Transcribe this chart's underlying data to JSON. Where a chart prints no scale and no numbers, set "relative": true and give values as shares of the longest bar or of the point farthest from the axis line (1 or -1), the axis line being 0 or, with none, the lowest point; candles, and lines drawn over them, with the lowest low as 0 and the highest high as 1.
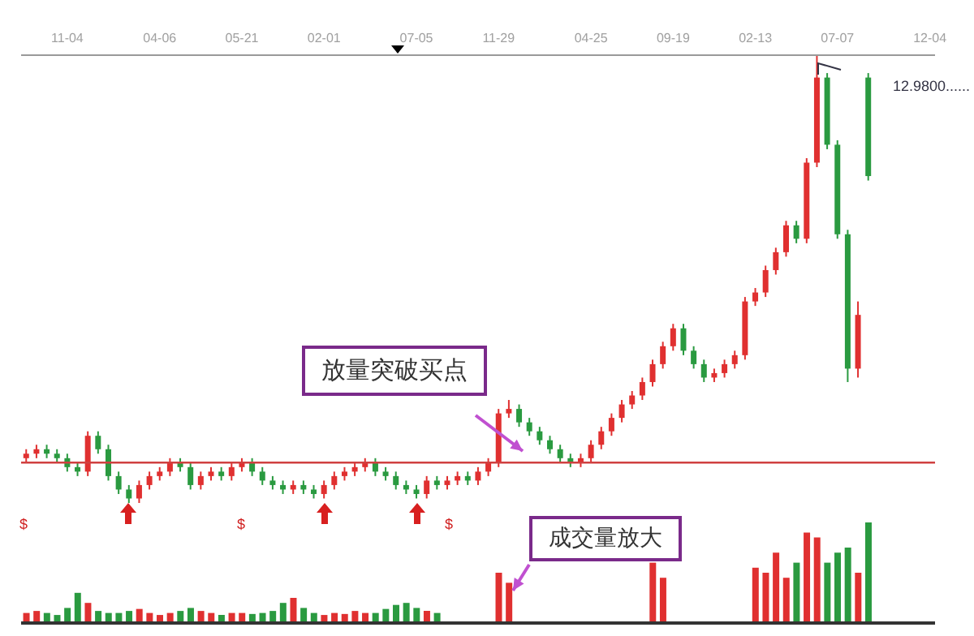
{
  "chart_data": [
    {
      "type": "candlestick",
      "relative": true,
      "categories": [
        null,
        null,
        null,
        null,
        "11-04",
        null,
        null,
        null,
        null,
        null,
        null,
        null,
        null,
        "04-06",
        null,
        null,
        null,
        null,
        null,
        null,
        null,
        "05-21",
        null,
        null,
        null,
        null,
        null,
        null,
        null,
        "02-01",
        null,
        null,
        null,
        null,
        null,
        null,
        null,
        null,
        "07-05",
        null,
        null,
        null,
        null,
        null,
        null,
        null,
        "11-29",
        null,
        null,
        null,
        null,
        null,
        null,
        null,
        null,
        "04-25",
        null,
        null,
        null,
        null,
        null,
        null,
        null,
        "09-19",
        null,
        null,
        null,
        null,
        null,
        null,
        null,
        "02-13",
        null,
        null,
        null,
        null,
        null,
        null,
        null,
        "07-07",
        null,
        null,
        null,
        null,
        null,
        null,
        null,
        null,
        "12-04"
      ],
      "ohlc": [
        [
          0.1,
          0.12,
          0.09,
          0.11
        ],
        [
          0.11,
          0.13,
          0.1,
          0.12
        ],
        [
          0.12,
          0.13,
          0.1,
          0.11
        ],
        [
          0.11,
          0.12,
          0.09,
          0.1
        ],
        [
          0.1,
          0.11,
          0.07,
          0.08
        ],
        [
          0.08,
          0.09,
          0.06,
          0.07
        ],
        [
          0.07,
          0.16,
          0.06,
          0.15
        ],
        [
          0.15,
          0.16,
          0.11,
          0.12
        ],
        [
          0.12,
          0.13,
          0.05,
          0.06
        ],
        [
          0.06,
          0.07,
          0.02,
          0.03
        ],
        [
          0.03,
          0.04,
          0.0,
          0.01
        ],
        [
          0.01,
          0.05,
          0.0,
          0.04
        ],
        [
          0.04,
          0.07,
          0.03,
          0.06
        ],
        [
          0.06,
          0.08,
          0.05,
          0.07
        ],
        [
          0.07,
          0.1,
          0.06,
          0.09
        ],
        [
          0.09,
          0.1,
          0.07,
          0.08
        ],
        [
          0.08,
          0.09,
          0.03,
          0.04
        ],
        [
          0.04,
          0.07,
          0.03,
          0.06
        ],
        [
          0.06,
          0.08,
          0.05,
          0.07
        ],
        [
          0.07,
          0.08,
          0.05,
          0.06
        ],
        [
          0.06,
          0.09,
          0.05,
          0.08
        ],
        [
          0.08,
          0.1,
          0.07,
          0.09
        ],
        [
          0.09,
          0.1,
          0.06,
          0.07
        ],
        [
          0.07,
          0.08,
          0.04,
          0.05
        ],
        [
          0.05,
          0.06,
          0.03,
          0.04
        ],
        [
          0.04,
          0.05,
          0.02,
          0.03
        ],
        [
          0.03,
          0.05,
          0.02,
          0.04
        ],
        [
          0.04,
          0.05,
          0.02,
          0.03
        ],
        [
          0.03,
          0.04,
          0.01,
          0.02
        ],
        [
          0.02,
          0.05,
          0.01,
          0.04
        ],
        [
          0.04,
          0.07,
          0.03,
          0.06
        ],
        [
          0.06,
          0.08,
          0.05,
          0.07
        ],
        [
          0.07,
          0.09,
          0.06,
          0.08
        ],
        [
          0.08,
          0.1,
          0.07,
          0.09
        ],
        [
          0.09,
          0.1,
          0.06,
          0.07
        ],
        [
          0.07,
          0.08,
          0.05,
          0.06
        ],
        [
          0.06,
          0.07,
          0.03,
          0.04
        ],
        [
          0.04,
          0.05,
          0.02,
          0.03
        ],
        [
          0.03,
          0.04,
          0.01,
          0.02
        ],
        [
          0.02,
          0.06,
          0.01,
          0.05
        ],
        [
          0.05,
          0.06,
          0.03,
          0.04
        ],
        [
          0.04,
          0.06,
          0.03,
          0.05
        ],
        [
          0.05,
          0.07,
          0.04,
          0.06
        ],
        [
          0.06,
          0.07,
          0.04,
          0.05
        ],
        [
          0.05,
          0.08,
          0.04,
          0.07
        ],
        [
          0.07,
          0.1,
          0.06,
          0.09
        ],
        [
          0.09,
          0.21,
          0.08,
          0.2
        ],
        [
          0.2,
          0.23,
          0.19,
          0.21
        ],
        [
          0.21,
          0.22,
          0.17,
          0.18
        ],
        [
          0.18,
          0.19,
          0.15,
          0.16
        ],
        [
          0.16,
          0.17,
          0.13,
          0.14
        ],
        [
          0.14,
          0.15,
          0.11,
          0.12
        ],
        [
          0.12,
          0.13,
          0.09,
          0.1
        ],
        [
          0.1,
          0.11,
          0.08,
          0.09
        ],
        [
          0.09,
          0.11,
          0.08,
          0.1
        ],
        [
          0.1,
          0.14,
          0.09,
          0.13
        ],
        [
          0.13,
          0.17,
          0.12,
          0.16
        ],
        [
          0.16,
          0.2,
          0.15,
          0.19
        ],
        [
          0.19,
          0.23,
          0.18,
          0.22
        ],
        [
          0.22,
          0.25,
          0.21,
          0.24
        ],
        [
          0.24,
          0.28,
          0.23,
          0.27
        ],
        [
          0.27,
          0.32,
          0.26,
          0.31
        ],
        [
          0.31,
          0.36,
          0.3,
          0.35
        ],
        [
          0.35,
          0.4,
          0.34,
          0.39
        ],
        [
          0.39,
          0.4,
          0.33,
          0.34
        ],
        [
          0.34,
          0.35,
          0.3,
          0.31
        ],
        [
          0.31,
          0.32,
          0.27,
          0.28
        ],
        [
          0.28,
          0.3,
          0.27,
          0.29
        ],
        [
          0.29,
          0.32,
          0.28,
          0.31
        ],
        [
          0.31,
          0.34,
          0.3,
          0.33
        ],
        [
          0.33,
          0.46,
          0.32,
          0.45
        ],
        [
          0.45,
          0.48,
          0.44,
          0.47
        ],
        [
          0.47,
          0.53,
          0.46,
          0.52
        ],
        [
          0.52,
          0.57,
          0.51,
          0.56
        ],
        [
          0.56,
          0.63,
          0.55,
          0.62
        ],
        [
          0.62,
          0.63,
          0.58,
          0.59
        ],
        [
          0.59,
          0.77,
          0.58,
          0.76
        ],
        [
          0.76,
          1.0,
          0.75,
          0.95
        ],
        [
          0.95,
          0.96,
          0.79,
          0.8
        ],
        [
          0.8,
          0.81,
          0.59,
          0.6
        ],
        [
          0.6,
          0.61,
          0.27,
          0.3
        ],
        [
          0.3,
          0.45,
          0.28,
          0.42
        ],
        [
          0.95,
          0.96,
          0.72,
          0.73
        ],
        null,
        null,
        null,
        null,
        null,
        null
      ],
      "colors": [
        "#e03030",
        "#e03030",
        "#2a9a40",
        "#2a9a40",
        "#2a9a40",
        "#2a9a40",
        "#e03030",
        "#2a9a40",
        "#2a9a40",
        "#2a9a40",
        "#2a9a40",
        "#e03030",
        "#e03030",
        "#e03030",
        "#e03030",
        "#2a9a40",
        "#2a9a40",
        "#e03030",
        "#e03030",
        "#2a9a40",
        "#e03030",
        "#e03030",
        "#2a9a40",
        "#2a9a40",
        "#2a9a40",
        "#2a9a40",
        "#e03030",
        "#2a9a40",
        "#2a9a40",
        "#e03030",
        "#e03030",
        "#e03030",
        "#e03030",
        "#e03030",
        "#2a9a40",
        "#2a9a40",
        "#2a9a40",
        "#2a9a40",
        "#2a9a40",
        "#e03030",
        "#2a9a40",
        "#e03030",
        "#e03030",
        "#2a9a40",
        "#e03030",
        "#e03030",
        "#e03030",
        "#e03030",
        "#2a9a40",
        "#2a9a40",
        "#2a9a40",
        "#2a9a40",
        "#2a9a40",
        "#2a9a40",
        "#e03030",
        "#e03030",
        "#e03030",
        "#e03030",
        "#e03030",
        "#e03030",
        "#e03030",
        "#e03030",
        "#e03030",
        "#e03030",
        "#2a9a40",
        "#2a9a40",
        "#2a9a40",
        "#e03030",
        "#e03030",
        "#e03030",
        "#e03030",
        "#e03030",
        "#e03030",
        "#e03030",
        "#e03030",
        "#2a9a40",
        "#e03030",
        "#e03030",
        "#2a9a40",
        "#2a9a40",
        "#2a9a40",
        "#e03030",
        "#2a9a40",
        "#e03030",
        "#e03030",
        "#e03030",
        "#e03030",
        "#e03030",
        "#e03030"
      ],
      "ref_lines": [
        {
          "axis": "y",
          "value": 0.09,
          "color": "#d04040"
        }
      ],
      "annotations": [
        "放量突破买点",
        "12.9800......",
        "$",
        "$",
        "$"
      ]
    },
    {
      "type": "bar",
      "relative": true,
      "categories": [
        null,
        null,
        null,
        null,
        null,
        null,
        null,
        null,
        null,
        null,
        null,
        null,
        null,
        null,
        null,
        null,
        null,
        null,
        null,
        null,
        null,
        null,
        null,
        null,
        null,
        null,
        null,
        null,
        null,
        null,
        null,
        null,
        null,
        null,
        null,
        null,
        null,
        null,
        null,
        null,
        null,
        null,
        null,
        null,
        null,
        null,
        null,
        null,
        null,
        null,
        null,
        null,
        null,
        null,
        null,
        null,
        null,
        null,
        null,
        null,
        null,
        null,
        null,
        null,
        null,
        null,
        null,
        null,
        null,
        null,
        null,
        null,
        null,
        null,
        null,
        null,
        null,
        null,
        null,
        null,
        null,
        null,
        null,
        null,
        null,
        null,
        null,
        null,
        null
      ],
      "values": [
        0.1,
        0.12,
        0.1,
        0.08,
        0.15,
        0.3,
        0.2,
        0.12,
        0.1,
        0.1,
        0.12,
        0.14,
        0.1,
        0.08,
        0.1,
        0.12,
        0.15,
        0.12,
        0.1,
        0.08,
        0.1,
        0.1,
        0.09,
        0.1,
        0.12,
        0.2,
        0.25,
        0.15,
        0.1,
        0.08,
        0.1,
        0.09,
        0.12,
        0.1,
        0.1,
        0.14,
        0.18,
        0.2,
        0.15,
        0.12,
        0.1,
        null,
        null,
        null,
        null,
        null,
        0.5,
        0.4,
        null,
        null,
        null,
        null,
        null,
        null,
        null,
        null,
        null,
        null,
        null,
        null,
        null,
        0.6,
        0.45,
        null,
        null,
        null,
        null,
        null,
        null,
        null,
        null,
        0.55,
        0.5,
        0.7,
        0.45,
        0.6,
        0.9,
        0.85,
        0.6,
        0.7,
        0.75,
        0.5,
        1.0,
        null,
        null,
        null,
        null,
        null,
        null
      ],
      "colors": [
        "#e03030",
        "#e03030",
        "#2a9a40",
        "#2a9a40",
        "#2a9a40",
        "#2a9a40",
        "#e03030",
        "#2a9a40",
        "#2a9a40",
        "#2a9a40",
        "#2a9a40",
        "#e03030",
        "#e03030",
        "#e03030",
        "#e03030",
        "#2a9a40",
        "#2a9a40",
        "#e03030",
        "#e03030",
        "#2a9a40",
        "#e03030",
        "#e03030",
        "#2a9a40",
        "#2a9a40",
        "#2a9a40",
        "#2a9a40",
        "#e03030",
        "#2a9a40",
        "#2a9a40",
        "#e03030",
        "#e03030",
        "#e03030",
        "#e03030",
        "#e03030",
        "#2a9a40",
        "#2a9a40",
        "#2a9a40",
        "#2a9a40",
        "#2a9a40",
        "#e03030",
        "#2a9a40",
        "#e03030",
        "#e03030",
        "#2a9a40",
        "#e03030",
        "#e03030",
        "#e03030",
        "#e03030",
        "#2a9a40",
        "#2a9a40",
        "#2a9a40",
        "#2a9a40",
        "#2a9a40",
        "#2a9a40",
        "#e03030",
        "#e03030",
        "#e03030",
        "#e03030",
        "#e03030",
        "#e03030",
        "#e03030",
        "#e03030",
        "#e03030",
        "#e03030",
        "#2a9a40",
        "#2a9a40",
        "#2a9a40",
        "#e03030",
        "#e03030",
        "#e03030",
        "#e03030",
        "#e03030",
        "#e03030",
        "#e03030",
        "#e03030",
        "#2a9a40",
        "#e03030",
        "#e03030",
        "#2a9a40",
        "#2a9a40",
        "#2a9a40",
        "#e03030",
        "#2a9a40",
        "#e03030",
        "#e03030",
        "#e03030",
        "#e03030",
        "#e03030",
        "#e03030"
      ],
      "annotations": [
        "成交量放大"
      ]
    }
  ]
}
